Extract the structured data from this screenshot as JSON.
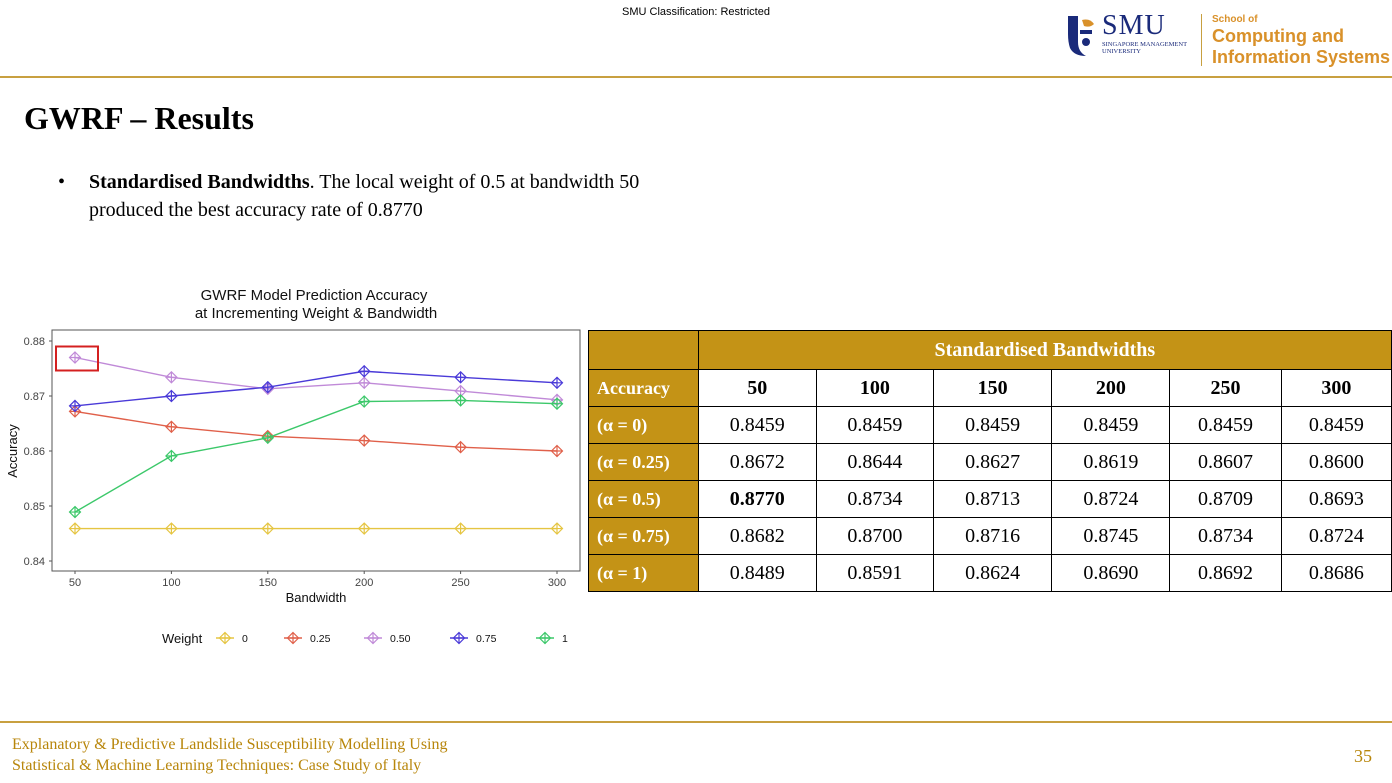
{
  "header": {
    "classification": "SMU Classification: Restricted",
    "logo": {
      "name": "SMU",
      "subtitle_line1": "SINGAPORE MANAGEMENT",
      "subtitle_line2": "UNIVERSITY",
      "school_small": "School of",
      "school_line1": "Computing and",
      "school_line2": "Information Systems",
      "accent_color": "#d9912a",
      "brand_color": "#1a2a7a"
    }
  },
  "slide": {
    "title": "GWRF – Results",
    "bullet_bold": "Standardised Bandwidths",
    "bullet_rest": ". The local weight of 0.5 at bandwidth 50 produced the best accuracy rate of 0.8770"
  },
  "chart_data": {
    "type": "line",
    "title_line1": "GWRF Model Prediction Accuracy",
    "title_line2": "at Incrementing Weight & Bandwidth",
    "xlabel": "Bandwidth",
    "ylabel": "Accuracy",
    "x": [
      50,
      100,
      150,
      200,
      250,
      300
    ],
    "xlim": [
      50,
      300
    ],
    "ylim": [
      0.84,
      0.88
    ],
    "yticks": [
      0.84,
      0.85,
      0.86,
      0.87,
      0.88
    ],
    "ytick_labels": [
      "0.84",
      "0.85",
      "0.86",
      "0.87",
      "0.88"
    ],
    "xtick_labels": [
      "50",
      "100",
      "150",
      "200",
      "250",
      "300"
    ],
    "legend_title": "Weight",
    "legend_position": "bottom",
    "grid": false,
    "highlight": {
      "x": 50,
      "series": "0.50"
    },
    "series": [
      {
        "name": "0",
        "color": "#e5c542",
        "values": [
          0.8459,
          0.8459,
          0.8459,
          0.8459,
          0.8459,
          0.8459
        ]
      },
      {
        "name": "0.25",
        "color": "#e0604a",
        "values": [
          0.8672,
          0.8644,
          0.8627,
          0.8619,
          0.8607,
          0.86
        ]
      },
      {
        "name": "0.50",
        "color": "#c08ad8",
        "values": [
          0.877,
          0.8734,
          0.8713,
          0.8724,
          0.8709,
          0.8693
        ]
      },
      {
        "name": "0.75",
        "color": "#4a3ad8",
        "values": [
          0.8682,
          0.87,
          0.8716,
          0.8745,
          0.8734,
          0.8724
        ]
      },
      {
        "name": "1",
        "color": "#3cc86a",
        "values": [
          0.8489,
          0.8591,
          0.8624,
          0.869,
          0.8692,
          0.8686
        ]
      }
    ]
  },
  "table": {
    "group_header": "Standardised Bandwidths",
    "corner_label": "Accuracy",
    "columns": [
      "50",
      "100",
      "150",
      "200",
      "250",
      "300"
    ],
    "rows": [
      {
        "label": "(α = 0)",
        "values": [
          "0.8459",
          "0.8459",
          "0.8459",
          "0.8459",
          "0.8459",
          "0.8459"
        ]
      },
      {
        "label": "(α = 0.25)",
        "values": [
          "0.8672",
          "0.8644",
          "0.8627",
          "0.8619",
          "0.8607",
          "0.8600"
        ]
      },
      {
        "label": "(α = 0.5)",
        "values": [
          "0.8770",
          "0.8734",
          "0.8713",
          "0.8724",
          "0.8709",
          "0.8693"
        ]
      },
      {
        "label": "(α = 0.75)",
        "values": [
          "0.8682",
          "0.8700",
          "0.8716",
          "0.8745",
          "0.8734",
          "0.8724"
        ]
      },
      {
        "label": "(α = 1)",
        "values": [
          "0.8489",
          "0.8591",
          "0.8624",
          "0.8690",
          "0.8692",
          "0.8686"
        ]
      }
    ],
    "best_cell": {
      "row": 2,
      "col": 0
    },
    "header_color": "#c49316"
  },
  "footer": {
    "line1": "Explanatory & Predictive Landslide Susceptibility Modelling Using",
    "line2": "Statistical & Machine Learning Techniques: Case Study of Italy",
    "page_number": "35"
  }
}
